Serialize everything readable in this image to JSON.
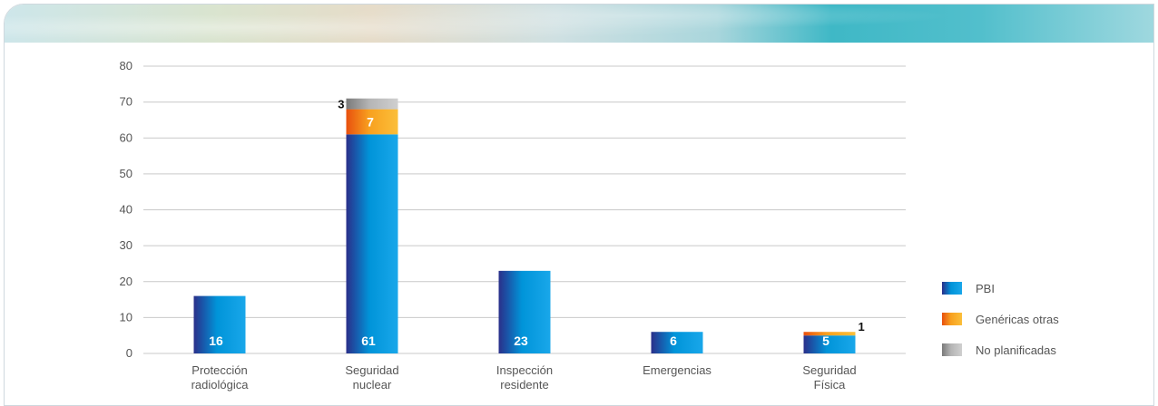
{
  "chart_data": {
    "type": "bar",
    "stacked": true,
    "categories": [
      [
        "Protección",
        "radiológica"
      ],
      [
        "Seguridad",
        "nuclear"
      ],
      [
        "Inspección",
        "residente"
      ],
      [
        "Emergencias"
      ],
      [
        "Seguridad",
        "Física"
      ]
    ],
    "series": [
      {
        "name": "PBI",
        "values": [
          16,
          61,
          23,
          6,
          5
        ]
      },
      {
        "name": "Genéricas otras",
        "values": [
          0,
          7,
          0,
          0,
          1
        ]
      },
      {
        "name": "No planificadas",
        "values": [
          0,
          3,
          0,
          0,
          0
        ]
      }
    ],
    "ylim": [
      0,
      80
    ],
    "yticks": [
      0,
      10,
      20,
      30,
      40,
      50,
      60,
      70,
      80
    ],
    "grid": true,
    "legend_position": "right",
    "colors": {
      "PBI": [
        "#2a2f8a",
        "#0094d9",
        "#19a7ea"
      ],
      "Genéricas otras": [
        "#e8500e",
        "#f8a11f",
        "#fbbf3a"
      ],
      "No planificadas": [
        "#7a7a7a",
        "#b5b5b5",
        "#cfcfcf"
      ]
    }
  }
}
